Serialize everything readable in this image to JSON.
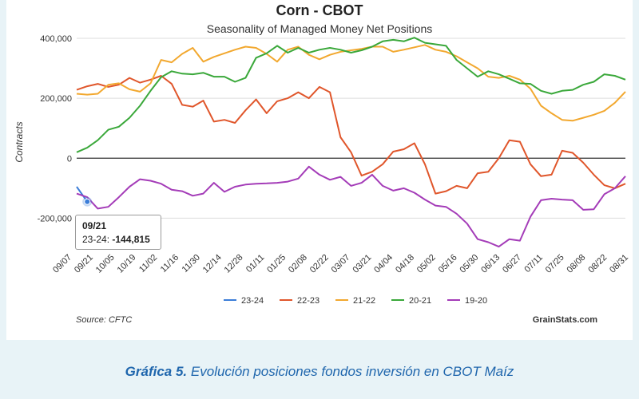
{
  "caption": {
    "bold": "Gráfica 5.",
    "text": " Evolución posiciones fondos inversión en CBOT Maíz"
  },
  "tooltip": {
    "date": "09/21",
    "series": "23-24",
    "value": "-144,815"
  },
  "source": "Source: CFTC",
  "credit": "GrainStats.com",
  "colors": {
    "23-24": "#3b7dd8",
    "22-23": "#e0562b",
    "21-22": "#f2a82f",
    "20-21": "#3aa83a",
    "19-20": "#a43cb8"
  },
  "chart_data": {
    "type": "line",
    "title": "Corn - CBOT",
    "subtitle": "Seasonality of Managed Money Net Positions",
    "ylabel": "Contracts",
    "xlabel": "",
    "ylim": [
      -300000,
      400000
    ],
    "yticks": [
      -200000,
      0,
      200000,
      400000
    ],
    "ytick_labels": [
      "-200,000",
      "0",
      "200,000",
      "400,000"
    ],
    "x_ticks": [
      "09/07",
      "09/21",
      "10/05",
      "10/19",
      "11/02",
      "11/16",
      "11/30",
      "12/14",
      "12/28",
      "01/11",
      "01/25",
      "02/08",
      "02/22",
      "03/07",
      "03/21",
      "04/04",
      "04/18",
      "05/02",
      "05/16",
      "05/30",
      "06/13",
      "06/27",
      "07/11",
      "07/25",
      "08/08",
      "08/22",
      "08/31"
    ],
    "legend_position": "bottom",
    "series": [
      {
        "name": "23-24",
        "values": [
          -95000,
          -144815
        ]
      },
      {
        "name": "22-23",
        "values": [
          228000,
          240000,
          248000,
          238000,
          245000,
          268000,
          252000,
          262000,
          275000,
          248000,
          178000,
          172000,
          192000,
          122000,
          128000,
          118000,
          160000,
          196000,
          150000,
          190000,
          200000,
          220000,
          200000,
          238000,
          220000,
          70000,
          20000,
          -58000,
          -45000,
          -20000,
          22000,
          30000,
          50000,
          -20000,
          -118000,
          -110000,
          -92000,
          -100000,
          -50000,
          -45000,
          0,
          60000,
          55000,
          -20000,
          -60000,
          -55000,
          25000,
          18000,
          -15000,
          -55000,
          -90000,
          -100000,
          -85000
        ]
      },
      {
        "name": "21-22",
        "values": [
          215000,
          212000,
          215000,
          245000,
          250000,
          230000,
          222000,
          250000,
          328000,
          320000,
          348000,
          368000,
          322000,
          338000,
          350000,
          362000,
          372000,
          368000,
          348000,
          322000,
          362000,
          372000,
          345000,
          330000,
          345000,
          355000,
          360000,
          365000,
          372000,
          372000,
          355000,
          362000,
          370000,
          378000,
          362000,
          355000,
          340000,
          320000,
          300000,
          272000,
          268000,
          275000,
          262000,
          232000,
          175000,
          150000,
          128000,
          125000,
          135000,
          145000,
          158000,
          185000,
          222000
        ]
      },
      {
        "name": "20-21",
        "values": [
          20000,
          35000,
          60000,
          95000,
          105000,
          135000,
          175000,
          225000,
          270000,
          290000,
          282000,
          280000,
          285000,
          272000,
          272000,
          255000,
          268000,
          335000,
          350000,
          375000,
          352000,
          368000,
          352000,
          362000,
          368000,
          362000,
          352000,
          360000,
          372000,
          390000,
          395000,
          390000,
          402000,
          385000,
          380000,
          375000,
          328000,
          300000,
          272000,
          290000,
          280000,
          265000,
          250000,
          248000,
          225000,
          215000,
          225000,
          228000,
          245000,
          255000,
          280000,
          275000,
          262000
        ]
      },
      {
        "name": "19-20",
        "values": [
          -118000,
          -130000,
          -168000,
          -162000,
          -130000,
          -95000,
          -70000,
          -75000,
          -85000,
          -105000,
          -110000,
          -125000,
          -118000,
          -82000,
          -112000,
          -95000,
          -88000,
          -85000,
          -84000,
          -82000,
          -78000,
          -68000,
          -28000,
          -55000,
          -72000,
          -62000,
          -92000,
          -82000,
          -55000,
          -92000,
          -108000,
          -100000,
          -115000,
          -138000,
          -158000,
          -162000,
          -185000,
          -218000,
          -270000,
          -280000,
          -295000,
          -270000,
          -275000,
          -195000,
          -140000,
          -135000,
          -138000,
          -140000,
          -172000,
          -170000,
          -120000,
          -100000,
          -60000
        ]
      }
    ]
  }
}
